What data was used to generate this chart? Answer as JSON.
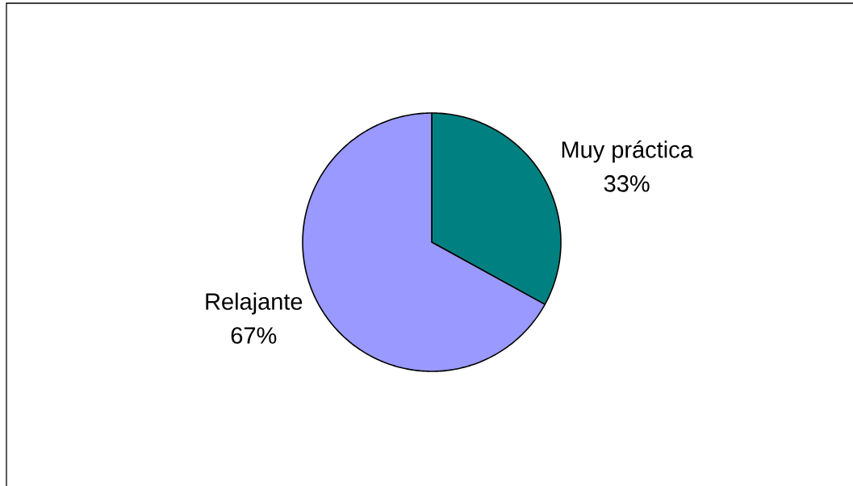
{
  "chart_data": {
    "type": "pie",
    "categories": [
      "Muy práctica",
      "Relajante"
    ],
    "values": [
      33,
      67
    ],
    "colors": [
      "#008080",
      "#9999ff"
    ],
    "value_labels": [
      "33%",
      "67%"
    ]
  }
}
